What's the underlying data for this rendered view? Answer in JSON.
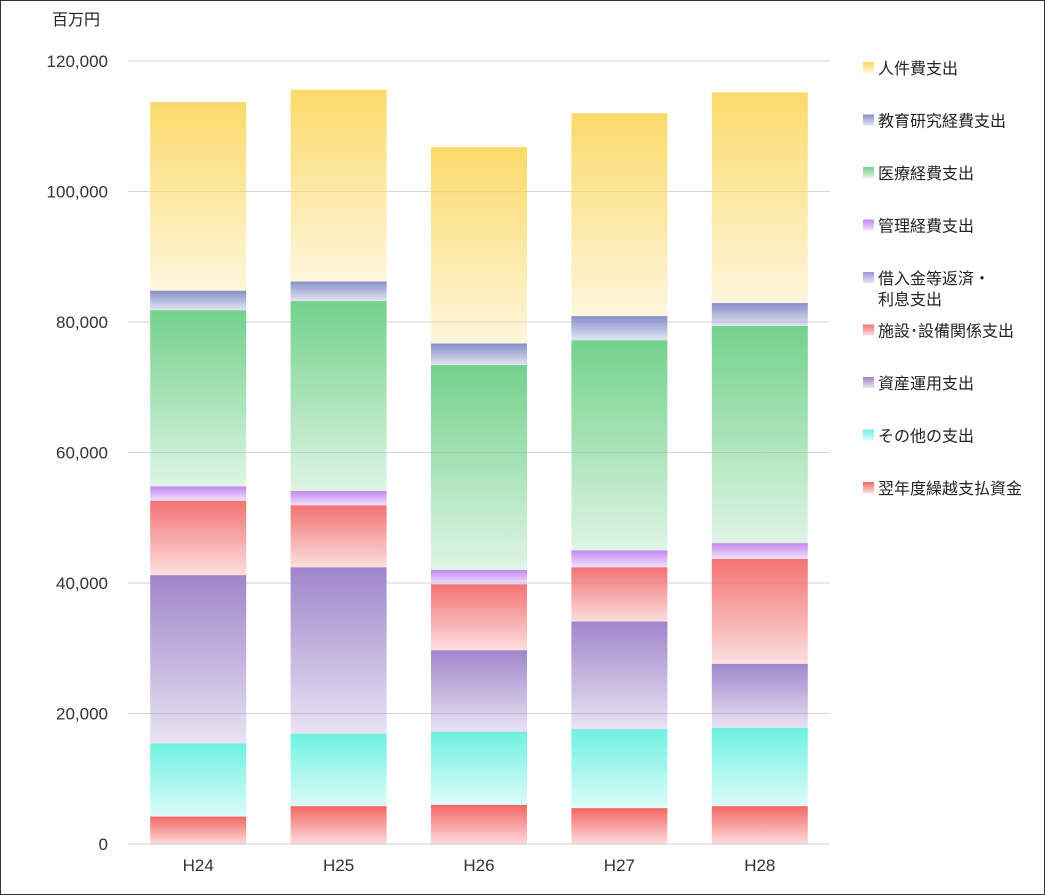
{
  "chart_data": {
    "type": "bar",
    "stacked": true,
    "unit_label": "百万円",
    "categories": [
      "H24",
      "H25",
      "H26",
      "H27",
      "H28"
    ],
    "ylim": [
      0,
      120000
    ],
    "yticks": [
      0,
      20000,
      40000,
      60000,
      80000,
      100000,
      120000
    ],
    "ytick_labels": [
      "0",
      "20,000",
      "40,000",
      "60,000",
      "80,000",
      "100,000",
      "120,000"
    ],
    "grid": true,
    "legend_position": "right",
    "series": [
      {
        "name": "翌年度繰越支払資金",
        "color": "#f25f5c",
        "values": [
          4200,
          5800,
          6000,
          5500,
          5800
        ]
      },
      {
        "name": "その他の支出",
        "color": "#66f0e0",
        "values": [
          11200,
          11100,
          11200,
          12100,
          12000
        ]
      },
      {
        "name": "資産運用支出",
        "color": "#9a80c8",
        "values": [
          25800,
          25500,
          12500,
          16500,
          9800
        ]
      },
      {
        "name": "施設・設備関係支出",
        "color": "#f26b6b",
        "values": [
          11400,
          9500,
          10100,
          8300,
          16100
        ]
      },
      {
        "name": "借入金等返済・利息支出",
        "color": "#9090d8",
        "values": [
          0,
          0,
          0,
          0,
          0
        ]
      },
      {
        "name": "管理経費支出",
        "color": "#c080f0",
        "values": [
          2200,
          2200,
          2200,
          2600,
          2400
        ]
      },
      {
        "name": "医療経費支出",
        "color": "#6ccf86",
        "values": [
          27000,
          29100,
          31400,
          32200,
          33300
        ]
      },
      {
        "name": "教育研究経費支出",
        "color": "#8088c8",
        "values": [
          3000,
          3000,
          3300,
          3700,
          3500
        ]
      },
      {
        "name": "人件費支出",
        "color": "#fbd862",
        "values": [
          28900,
          29400,
          30100,
          31100,
          32300
        ]
      }
    ],
    "legend_order": [
      "人件費支出",
      "教育研究経費支出",
      "医療経費支出",
      "管理経費支出",
      "借入金等返済・利息支出",
      "施設・設備関係支出",
      "資産運用支出",
      "その他の支出",
      "翌年度繰越支払資金"
    ],
    "legend_lines": {
      "人件費支出": [
        "人件費支出"
      ],
      "教育研究経費支出": [
        "教育研究経費支出"
      ],
      "医療経費支出": [
        "医療経費支出"
      ],
      "管理経費支出": [
        "管理経費支出"
      ],
      "借入金等返済・利息支出": [
        "借入金等返済・",
        "利息支出"
      ],
      "施設・設備関係支出": [
        "施設･設備関係支出"
      ],
      "資産運用支出": [
        "資産運用支出"
      ],
      "その他の支出": [
        "その他の支出"
      ],
      "翌年度繰越支払資金": [
        "翌年度繰越支払資金"
      ]
    }
  }
}
